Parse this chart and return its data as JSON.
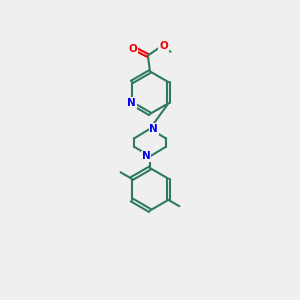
{
  "background_color": "#efefef",
  "bond_color": "#2d7a5f",
  "N_color": "#0000ee",
  "O_color": "#ee0000",
  "line_width": 1.5,
  "figsize": [
    3.0,
    3.0
  ],
  "dpi": 100,
  "xlim": [
    0,
    10
  ],
  "ylim": [
    0,
    14
  ]
}
